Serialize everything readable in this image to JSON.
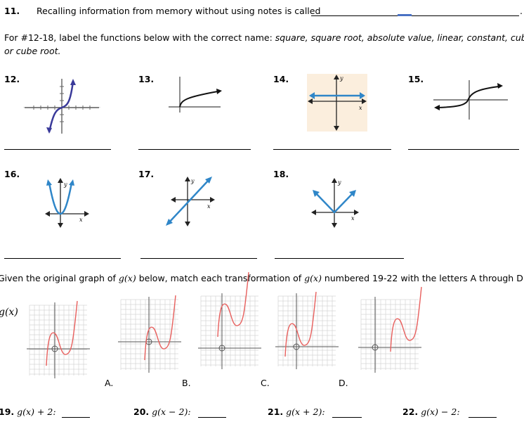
{
  "q11": {
    "number": "11.",
    "text": "Recalling information from memory without using notes is called",
    "end": "."
  },
  "instructions": {
    "prefix": "For #12-18, label the functions below with the correct name: ",
    "names": "square, square root, absolute value, linear, constant, cube,",
    "line2": "or cube root."
  },
  "functions": [
    {
      "number": "12.",
      "graph": "cube"
    },
    {
      "number": "13.",
      "graph": "square-root"
    },
    {
      "number": "14.",
      "graph": "constant"
    },
    {
      "number": "15.",
      "graph": "cube-root"
    },
    {
      "number": "16.",
      "graph": "square"
    },
    {
      "number": "17.",
      "graph": "linear"
    },
    {
      "number": "18.",
      "graph": "absolute-value"
    }
  ],
  "axis_labels": {
    "x": "x",
    "y": "y"
  },
  "transform": {
    "intro_a": "Given the original graph of ",
    "g": "g(x)",
    "intro_b": " below, match each transformation of ",
    "intro_c": " numbered 19-22 with the letters A through D.",
    "original_label": "g(x)",
    "letters": [
      "A.",
      "B.",
      "C.",
      "D."
    ]
  },
  "questions": [
    {
      "number": "19.",
      "expr": "g(x) + 2:"
    },
    {
      "number": "20.",
      "expr": "g(x − 2):"
    },
    {
      "number": "21.",
      "expr": "g(x + 2):"
    },
    {
      "number": "22.",
      "expr": "g(x) − 2:"
    }
  ],
  "colors": {
    "blue_curve": "#3a3a9a",
    "blue_line": "#2f86c8",
    "red_curve": "#e8605e",
    "grid": "#d6d6d6"
  }
}
